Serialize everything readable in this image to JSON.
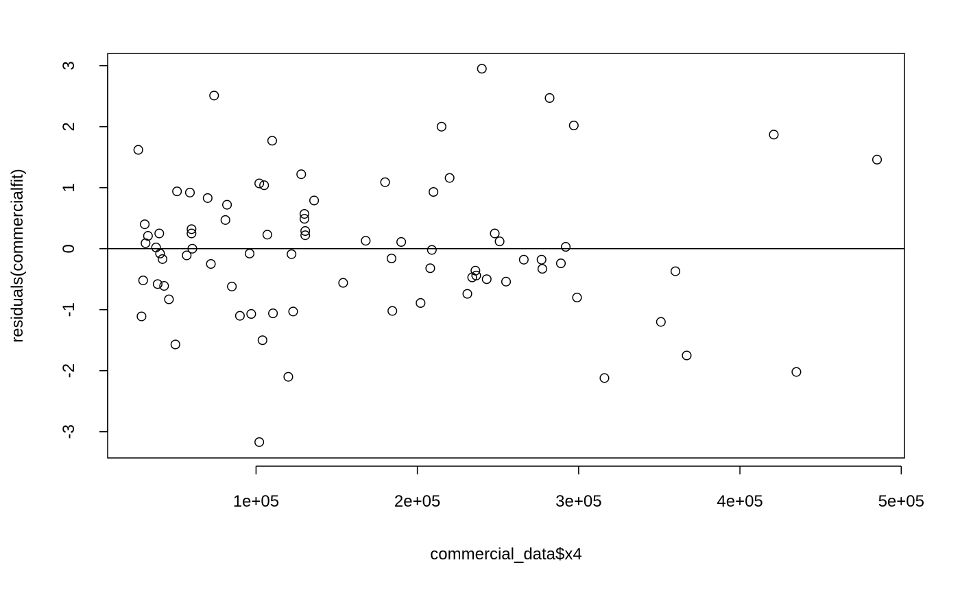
{
  "chart_data": {
    "type": "scatter",
    "title": "",
    "xlabel": "commercial_data$x4",
    "ylabel": "residuals(commercialfit)",
    "xlim": [
      8000,
      502000
    ],
    "ylim": [
      -3.43,
      3.2
    ],
    "x_ticks": [
      {
        "value": 100000,
        "label": "1e+05"
      },
      {
        "value": 200000,
        "label": "2e+05"
      },
      {
        "value": 300000,
        "label": "3e+05"
      },
      {
        "value": 400000,
        "label": "4e+05"
      },
      {
        "value": 500000,
        "label": "5e+05"
      }
    ],
    "y_ticks": [
      {
        "value": -3,
        "label": "-3"
      },
      {
        "value": -2,
        "label": "-2"
      },
      {
        "value": -1,
        "label": "-1"
      },
      {
        "value": 0,
        "label": "0"
      },
      {
        "value": 1,
        "label": "1"
      },
      {
        "value": 2,
        "label": "2"
      },
      {
        "value": 3,
        "label": "3"
      }
    ],
    "hline": 0,
    "grid": false,
    "marker": "open-circle",
    "points": [
      {
        "x": 27000,
        "y": 1.62
      },
      {
        "x": 29000,
        "y": -1.11
      },
      {
        "x": 30000,
        "y": -0.52
      },
      {
        "x": 31000,
        "y": 0.4
      },
      {
        "x": 31500,
        "y": 0.09
      },
      {
        "x": 33000,
        "y": 0.21
      },
      {
        "x": 38000,
        "y": 0.02
      },
      {
        "x": 39000,
        "y": -0.58
      },
      {
        "x": 40000,
        "y": 0.25
      },
      {
        "x": 40500,
        "y": -0.08
      },
      {
        "x": 42000,
        "y": -0.17
      },
      {
        "x": 43000,
        "y": -0.61
      },
      {
        "x": 46000,
        "y": -0.83
      },
      {
        "x": 50000,
        "y": -1.57
      },
      {
        "x": 51000,
        "y": 0.94
      },
      {
        "x": 57000,
        "y": -0.11
      },
      {
        "x": 59000,
        "y": 0.92
      },
      {
        "x": 60000,
        "y": 0.32
      },
      {
        "x": 60000,
        "y": 0.25
      },
      {
        "x": 60500,
        "y": 0.0
      },
      {
        "x": 70000,
        "y": 0.83
      },
      {
        "x": 72000,
        "y": -0.25
      },
      {
        "x": 74000,
        "y": 2.51
      },
      {
        "x": 81000,
        "y": 0.47
      },
      {
        "x": 82000,
        "y": 0.72
      },
      {
        "x": 85000,
        "y": -0.62
      },
      {
        "x": 90000,
        "y": -1.1
      },
      {
        "x": 96000,
        "y": -0.08
      },
      {
        "x": 97000,
        "y": -1.07
      },
      {
        "x": 102000,
        "y": -3.17
      },
      {
        "x": 102000,
        "y": 1.07
      },
      {
        "x": 104000,
        "y": -1.5
      },
      {
        "x": 105000,
        "y": 1.04
      },
      {
        "x": 107000,
        "y": 0.23
      },
      {
        "x": 110000,
        "y": 1.77
      },
      {
        "x": 110500,
        "y": -1.06
      },
      {
        "x": 120000,
        "y": -2.1
      },
      {
        "x": 122000,
        "y": -0.09
      },
      {
        "x": 123000,
        "y": -1.03
      },
      {
        "x": 128000,
        "y": 1.22
      },
      {
        "x": 130000,
        "y": 0.57
      },
      {
        "x": 130000,
        "y": 0.49
      },
      {
        "x": 130500,
        "y": 0.29
      },
      {
        "x": 130500,
        "y": 0.22
      },
      {
        "x": 136000,
        "y": 0.79
      },
      {
        "x": 154000,
        "y": -0.56
      },
      {
        "x": 168000,
        "y": 0.13
      },
      {
        "x": 180000,
        "y": 1.09
      },
      {
        "x": 184000,
        "y": -0.16
      },
      {
        "x": 184500,
        "y": -1.02
      },
      {
        "x": 190000,
        "y": 0.11
      },
      {
        "x": 202000,
        "y": -0.89
      },
      {
        "x": 208000,
        "y": -0.32
      },
      {
        "x": 209000,
        "y": -0.02
      },
      {
        "x": 210000,
        "y": 0.93
      },
      {
        "x": 215000,
        "y": 2.0
      },
      {
        "x": 220000,
        "y": 1.16
      },
      {
        "x": 231000,
        "y": -0.74
      },
      {
        "x": 234000,
        "y": -0.47
      },
      {
        "x": 236000,
        "y": -0.36
      },
      {
        "x": 236500,
        "y": -0.44
      },
      {
        "x": 240000,
        "y": 2.95
      },
      {
        "x": 243000,
        "y": -0.5
      },
      {
        "x": 248000,
        "y": 0.25
      },
      {
        "x": 251000,
        "y": 0.12
      },
      {
        "x": 255000,
        "y": -0.54
      },
      {
        "x": 266000,
        "y": -0.18
      },
      {
        "x": 277000,
        "y": -0.18
      },
      {
        "x": 277500,
        "y": -0.33
      },
      {
        "x": 282000,
        "y": 2.47
      },
      {
        "x": 289000,
        "y": -0.24
      },
      {
        "x": 292000,
        "y": 0.03
      },
      {
        "x": 297000,
        "y": 2.02
      },
      {
        "x": 299000,
        "y": -0.8
      },
      {
        "x": 316000,
        "y": -2.12
      },
      {
        "x": 351000,
        "y": -1.2
      },
      {
        "x": 360000,
        "y": -0.37
      },
      {
        "x": 367000,
        "y": -1.75
      },
      {
        "x": 421000,
        "y": 1.87
      },
      {
        "x": 435000,
        "y": -2.02
      },
      {
        "x": 485000,
        "y": 1.46
      }
    ]
  }
}
